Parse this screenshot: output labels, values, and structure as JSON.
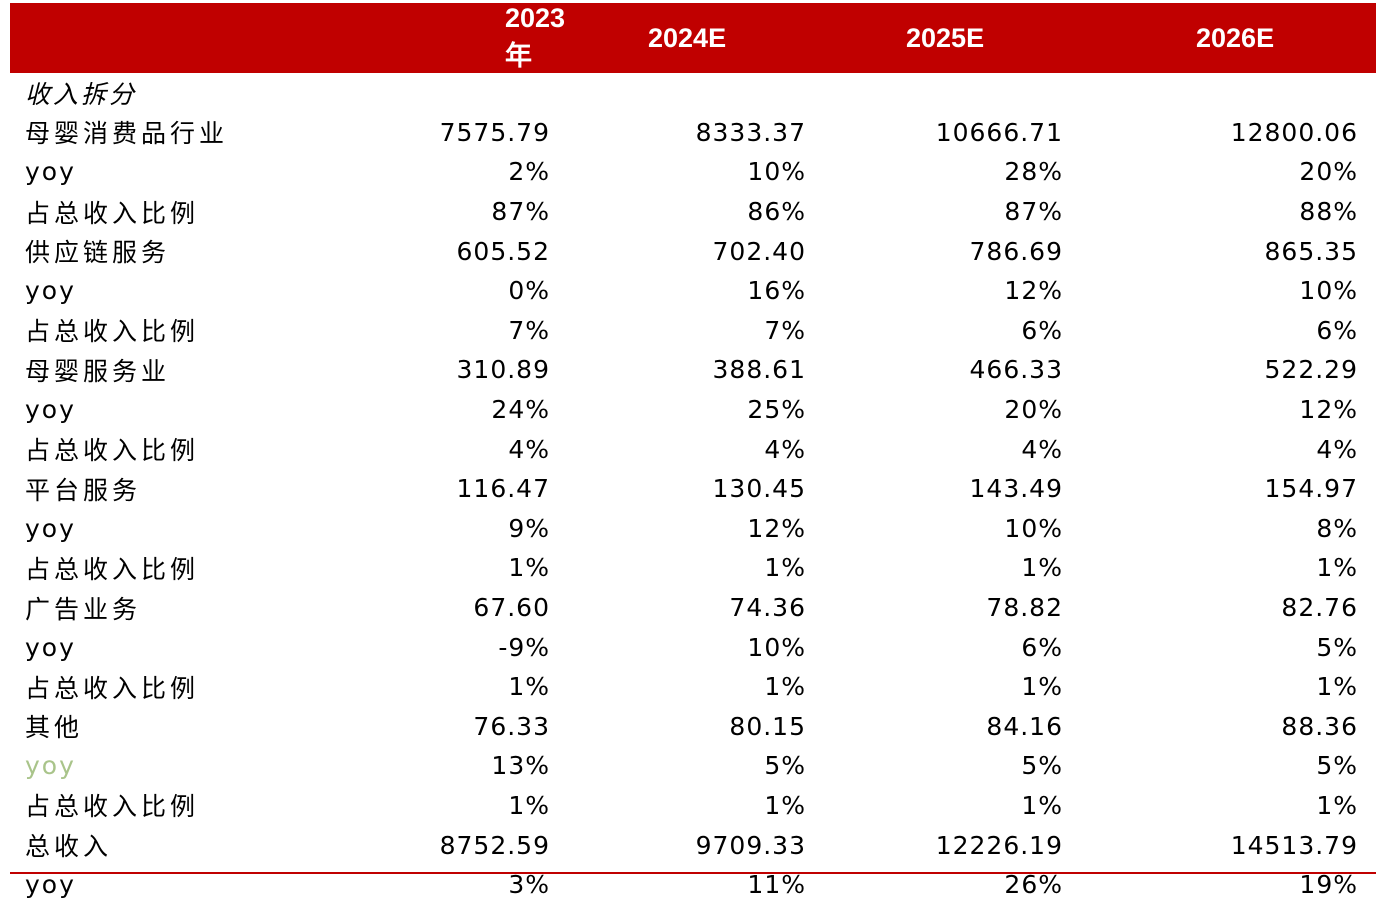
{
  "header": {
    "col1": "2023 年",
    "col2": "2024E",
    "col3": "2025E",
    "col4": "2026E"
  },
  "colors": {
    "header_bg": "#c00000",
    "header_text": "#ffffff",
    "muted_label": "#a9c48a"
  },
  "rows": [
    {
      "label": "收入拆分",
      "v1": "",
      "v2": "",
      "v3": "",
      "v4": ""
    },
    {
      "label": "母婴消费品行业",
      "v1": "7575.79",
      "v2": "8333.37",
      "v3": "10666.71",
      "v4": "12800.06"
    },
    {
      "label": "yoy",
      "v1": "2%",
      "v2": "10%",
      "v3": "28%",
      "v4": "20%"
    },
    {
      "label": "占总收入比例",
      "v1": "87%",
      "v2": "86%",
      "v3": "87%",
      "v4": "88%"
    },
    {
      "label": "供应链服务",
      "v1": "605.52",
      "v2": "702.40",
      "v3": "786.69",
      "v4": "865.35"
    },
    {
      "label": "yoy",
      "v1": "0%",
      "v2": "16%",
      "v3": "12%",
      "v4": "10%"
    },
    {
      "label": "占总收入比例",
      "v1": "7%",
      "v2": "7%",
      "v3": "6%",
      "v4": "6%"
    },
    {
      "label": "母婴服务业",
      "v1": "310.89",
      "v2": "388.61",
      "v3": "466.33",
      "v4": "522.29"
    },
    {
      "label": "yoy",
      "v1": "24%",
      "v2": "25%",
      "v3": "20%",
      "v4": "12%"
    },
    {
      "label": "占总收入比例",
      "v1": "4%",
      "v2": "4%",
      "v3": "4%",
      "v4": "4%"
    },
    {
      "label": "平台服务",
      "v1": "116.47",
      "v2": "130.45",
      "v3": "143.49",
      "v4": "154.97"
    },
    {
      "label": "yoy",
      "v1": "9%",
      "v2": "12%",
      "v3": "10%",
      "v4": "8%"
    },
    {
      "label": "占总收入比例",
      "v1": "1%",
      "v2": "1%",
      "v3": "1%",
      "v4": "1%"
    },
    {
      "label": "广告业务",
      "v1": "67.60",
      "v2": "74.36",
      "v3": "78.82",
      "v4": "82.76"
    },
    {
      "label": "yoy",
      "v1": "-9%",
      "v2": "10%",
      "v3": "6%",
      "v4": "5%"
    },
    {
      "label": "占总收入比例",
      "v1": "1%",
      "v2": "1%",
      "v3": "1%",
      "v4": "1%"
    },
    {
      "label": "其他",
      "v1": "76.33",
      "v2": "80.15",
      "v3": "84.16",
      "v4": "88.36"
    },
    {
      "label": "yoy",
      "v1": "13%",
      "v2": "5%",
      "v3": "5%",
      "v4": "5%"
    },
    {
      "label": "占总收入比例",
      "v1": "1%",
      "v2": "1%",
      "v3": "1%",
      "v4": "1%"
    },
    {
      "label": "总收入",
      "v1": "8752.59",
      "v2": "9709.33",
      "v3": "12226.19",
      "v4": "14513.79"
    },
    {
      "label": "yoy",
      "v1": "3%",
      "v2": "11%",
      "v3": "26%",
      "v4": "19%"
    }
  ]
}
